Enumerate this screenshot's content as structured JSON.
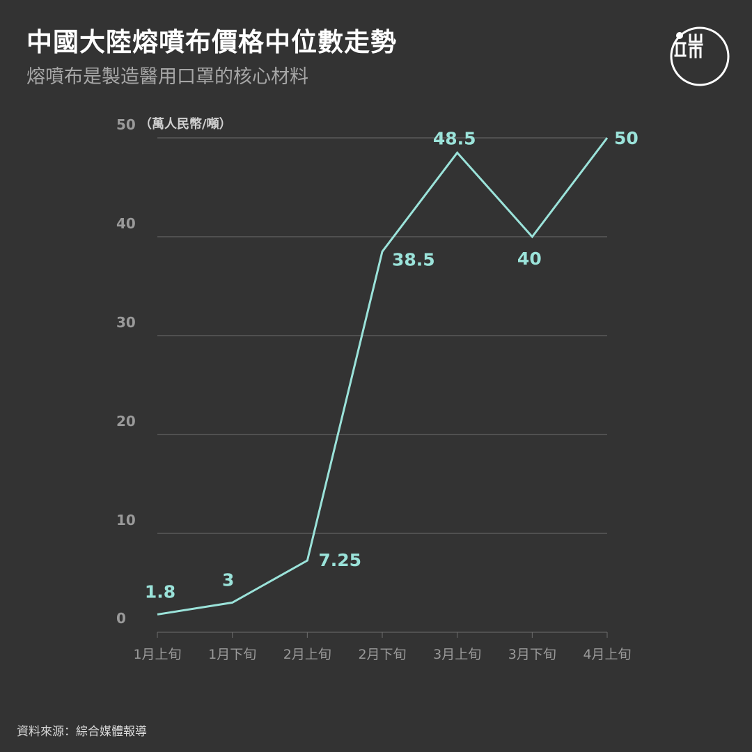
{
  "header": {
    "title": "中國大陸熔噴布價格中位數走勢",
    "subtitle": "熔噴布是製造醫用口罩的核心材料"
  },
  "footer": {
    "source": "資料來源：綜合媒體報導"
  },
  "logo": {
    "icon": "theinitium-logo-icon"
  },
  "colors": {
    "background": "#333333",
    "line": "#9be3da",
    "grid": "#6e6e6e"
  },
  "chart_data": {
    "type": "line",
    "title": "中國大陸熔噴布價格中位數走勢",
    "subtitle": "熔噴布是製造醫用口罩的核心材料",
    "ylabel": "（萬人民幣/噸）",
    "xlabel": "",
    "ylim": [
      0,
      50
    ],
    "yticks": [
      0,
      10,
      20,
      30,
      40,
      50
    ],
    "grid": true,
    "categories": [
      "1月上旬",
      "1月下旬",
      "2月上旬",
      "2月下旬",
      "3月上旬",
      "3月下旬",
      "4月上旬"
    ],
    "series": [
      {
        "values": [
          1.8,
          3,
          7.25,
          38.5,
          48.5,
          40,
          50
        ],
        "labels": [
          "1.8",
          "3",
          "7.25",
          "38.5",
          "48.5",
          "40",
          "50"
        ]
      }
    ]
  }
}
